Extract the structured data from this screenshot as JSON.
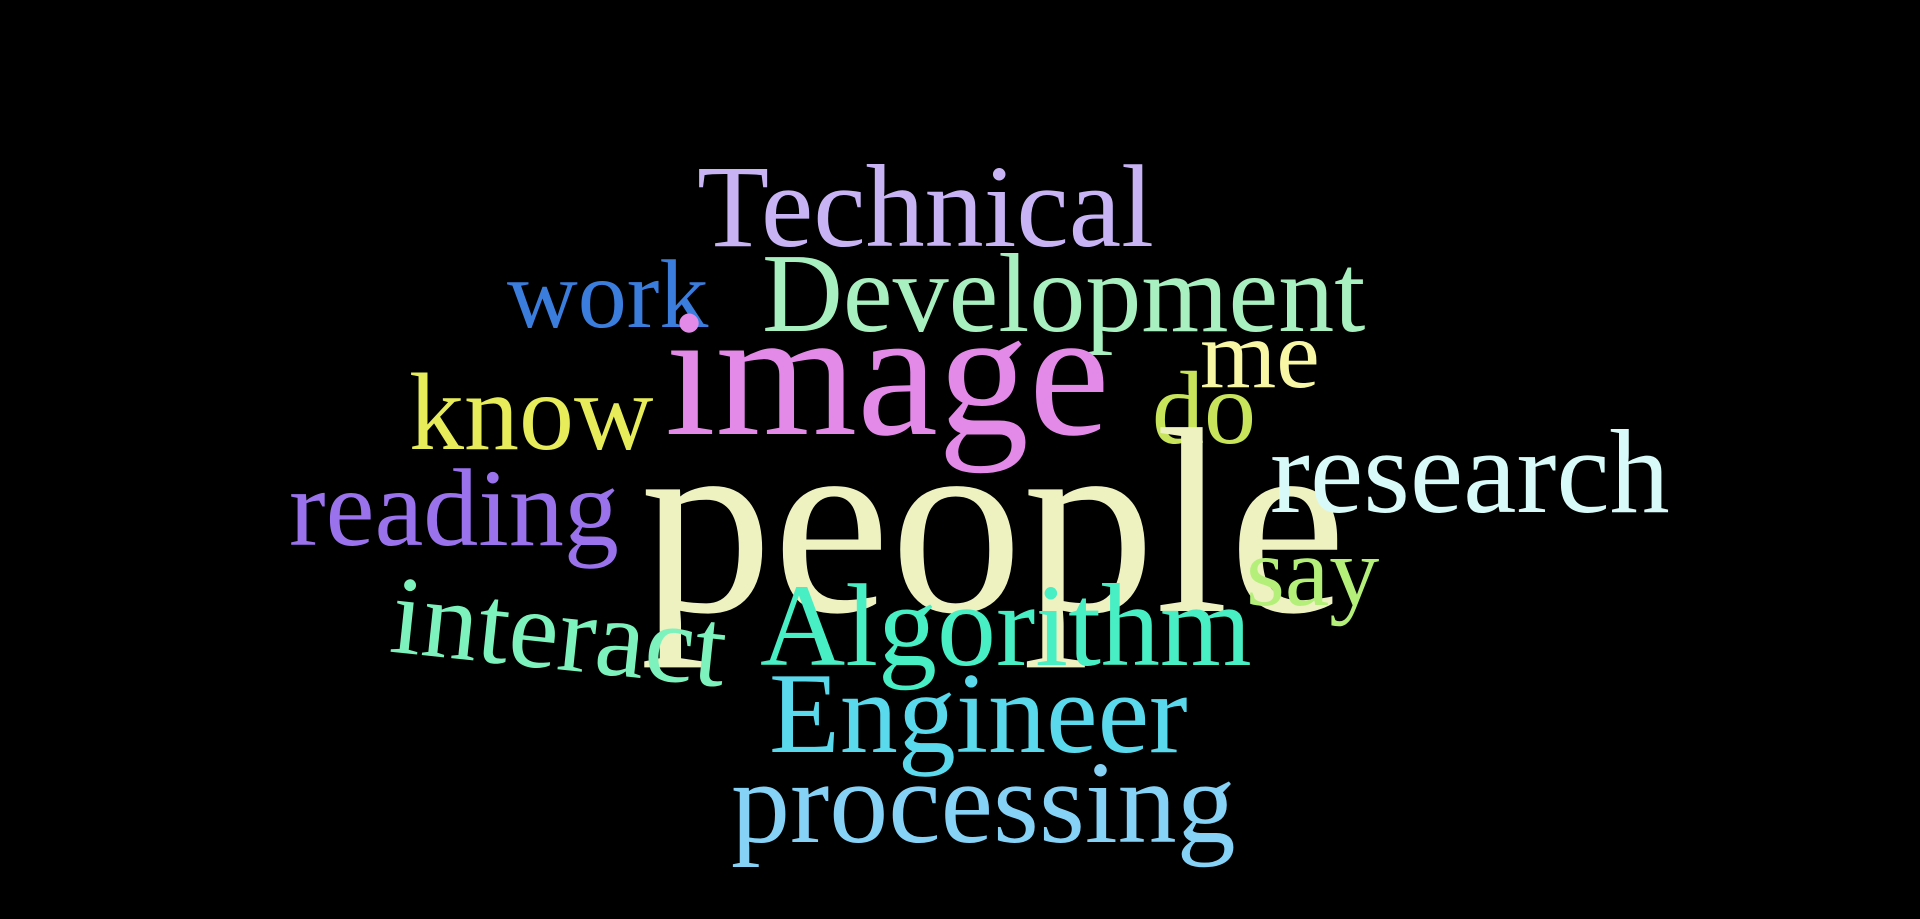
{
  "words": [
    {
      "key": "technical",
      "text": "Technical",
      "color": "#c8b4f4"
    },
    {
      "key": "work",
      "text": "work",
      "color": "#3b7ddd"
    },
    {
      "key": "development",
      "text": "Development",
      "color": "#a8f0c0"
    },
    {
      "key": "image",
      "text": "image",
      "color": "#e38ae8"
    },
    {
      "key": "me",
      "text": "me",
      "color": "#f7f7a6"
    },
    {
      "key": "know",
      "text": "know",
      "color": "#e6ec5a"
    },
    {
      "key": "do",
      "text": "do",
      "color": "#c7e45a"
    },
    {
      "key": "reading",
      "text": "reading",
      "color": "#9a72ec"
    },
    {
      "key": "people",
      "text": "people",
      "color": "#eef2c0"
    },
    {
      "key": "research",
      "text": "research",
      "color": "#d8fbfa"
    },
    {
      "key": "say",
      "text": "say",
      "color": "#b4ef7a"
    },
    {
      "key": "interact",
      "text": "interact",
      "color": "#7ef2bd"
    },
    {
      "key": "algorithm",
      "text": "Algorithm",
      "color": "#48eec4"
    },
    {
      "key": "engineer",
      "text": "Engineer",
      "color": "#5ad9ec"
    },
    {
      "key": "processing",
      "text": "processing",
      "color": "#86d2f6"
    }
  ]
}
